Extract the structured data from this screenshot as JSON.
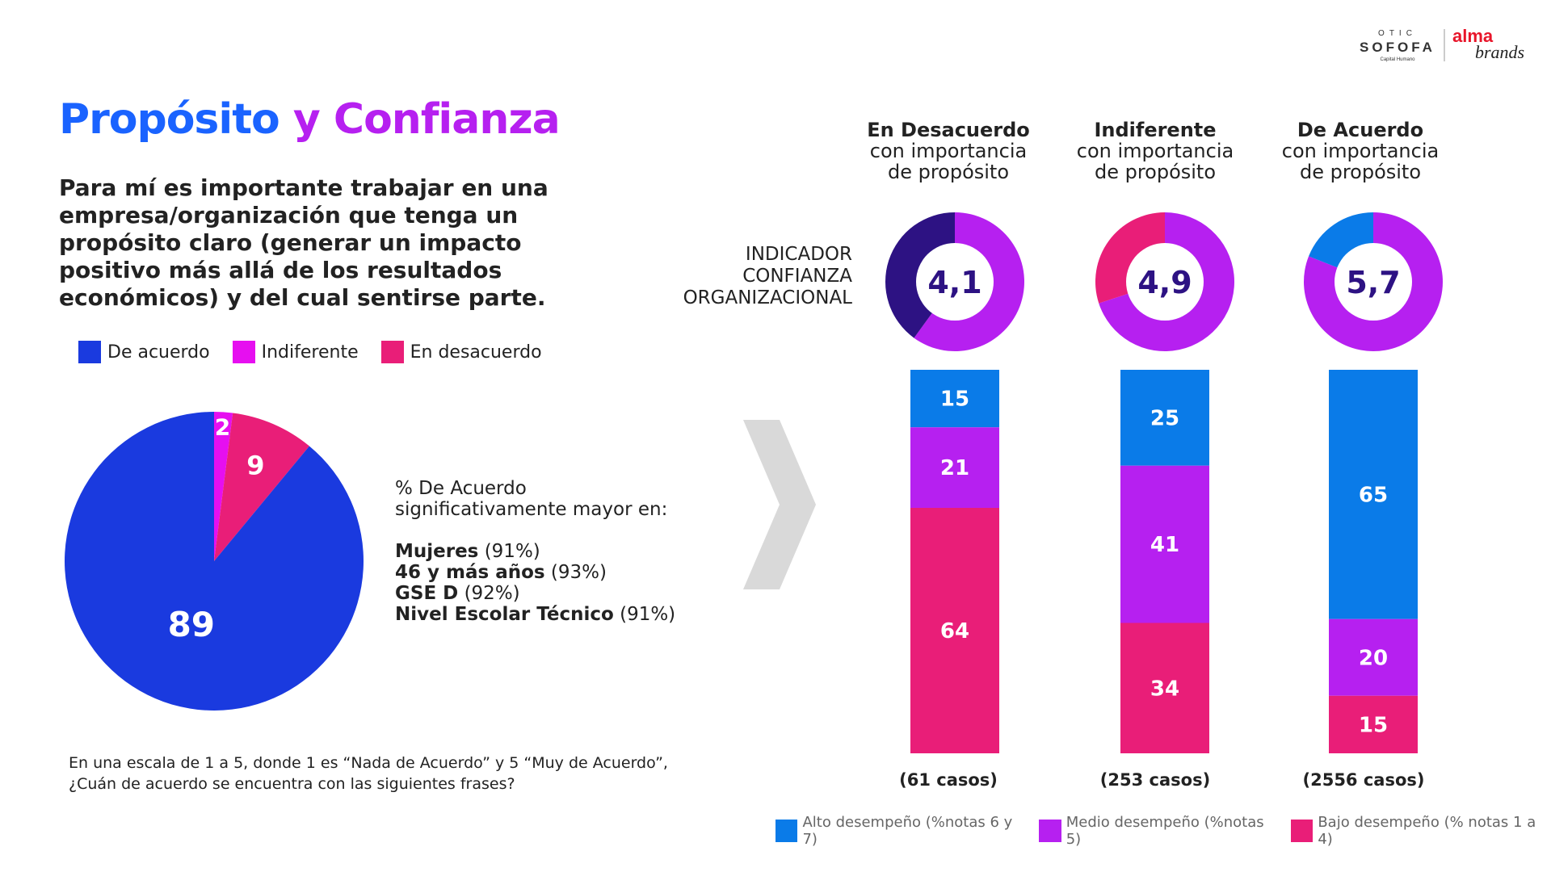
{
  "header": {
    "title_part1": "Propósito",
    "title_part2": "y Confianza"
  },
  "statement": "Para mí es importante trabajar en una empresa/organización que tenga un propósito claro (generar un impacto positivo más allá de los resultados económicos) y del cual sentirse parte.",
  "legend_top": [
    {
      "label": "De acuerdo",
      "color": "#1a3adf"
    },
    {
      "label": "Indiferente",
      "color": "#e60ff0"
    },
    {
      "label": "En desacuerdo",
      "color": "#e91e78"
    }
  ],
  "notes": {
    "intro_line1": "% De Acuerdo",
    "intro_line2": "significativamente mayor en:",
    "items": [
      {
        "bold": "Mujeres",
        "value": " (91%)"
      },
      {
        "bold": "46 y más años",
        "value": " (93%)"
      },
      {
        "bold": "GSE D",
        "value": " (92%)"
      },
      {
        "bold": "Nivel Escolar Técnico",
        "value": " (91%)"
      }
    ]
  },
  "question": {
    "line1": "En una escala de 1 a 5, donde 1 es “Nada de Acuerdo” y 5 “Muy de Acuerdo”,",
    "line2": "¿Cuán de acuerdo se encuentra con las siguientes frases?"
  },
  "indicator": {
    "line1": "INDICADOR",
    "line2": "CONFIANZA",
    "line3": "ORGANIZACIONAL"
  },
  "columns": [
    {
      "head_bold": "En Desacuerdo",
      "head_line2": "con importancia",
      "head_line3": "de propósito",
      "score": "4,1",
      "cases": "(61 casos)"
    },
    {
      "head_bold": "Indiferente",
      "head_line2": "con importancia",
      "head_line3": "de propósito",
      "score": "4,9",
      "cases": "(253 casos)"
    },
    {
      "head_bold": "De Acuerdo",
      "head_line2": "con importancia",
      "head_line3": "de propósito",
      "score": "5,7",
      "cases": "(2556 casos)"
    }
  ],
  "legend_bottom": [
    {
      "label": "Alto desempeño (%notas 6 y 7)",
      "color": "#0a7be8"
    },
    {
      "label": "Medio desempeño (%notas 5)",
      "color": "#b620f0"
    },
    {
      "label": "Bajo desempeño (% notas 1 a 4)",
      "color": "#e91e78"
    }
  ],
  "brand": {
    "otic": "OTIC",
    "sofofa": "SOFOFA",
    "sub": "Capital Humano",
    "alma": "alma",
    "brands": "brands"
  },
  "chart_data": [
    {
      "type": "pie",
      "labels": [
        "De acuerdo",
        "Indiferente",
        "En desacuerdo"
      ],
      "values": [
        89,
        2,
        9
      ],
      "colors": [
        "#1a3adf",
        "#e60ff0",
        "#e91e78"
      ]
    },
    {
      "type": "pie",
      "donut_colors": [
        "#2d1283",
        "#b620f0",
        "#e91e78",
        "#0a7be8"
      ],
      "donuts": [
        {
          "center_label": "4,1",
          "segments": [
            {
              "value": 60,
              "color": "#b620f0"
            },
            {
              "value": 40,
              "color": "#2d1283"
            }
          ]
        },
        {
          "center_label": "4,9",
          "segments": [
            {
              "value": 70,
              "color": "#b620f0"
            },
            {
              "value": 30,
              "color": "#e91e78"
            }
          ]
        },
        {
          "center_label": "5,7",
          "segments": [
            {
              "value": 81,
              "color": "#b620f0"
            },
            {
              "value": 19,
              "color": "#0a7be8"
            }
          ]
        }
      ]
    },
    {
      "type": "bar",
      "stacked": true,
      "categories": [
        "En Desacuerdo",
        "Indiferente",
        "De Acuerdo"
      ],
      "series": [
        {
          "name": "Alto desempeño (%notas 6 y 7)",
          "values": [
            15,
            25,
            65
          ],
          "color": "#0a7be8"
        },
        {
          "name": "Medio desempeño (%notas 5)",
          "values": [
            21,
            41,
            20
          ],
          "color": "#b620f0"
        },
        {
          "name": "Bajo desempeño (% notas 1 a 4)",
          "values": [
            64,
            34,
            15
          ],
          "color": "#e91e78"
        }
      ]
    }
  ]
}
